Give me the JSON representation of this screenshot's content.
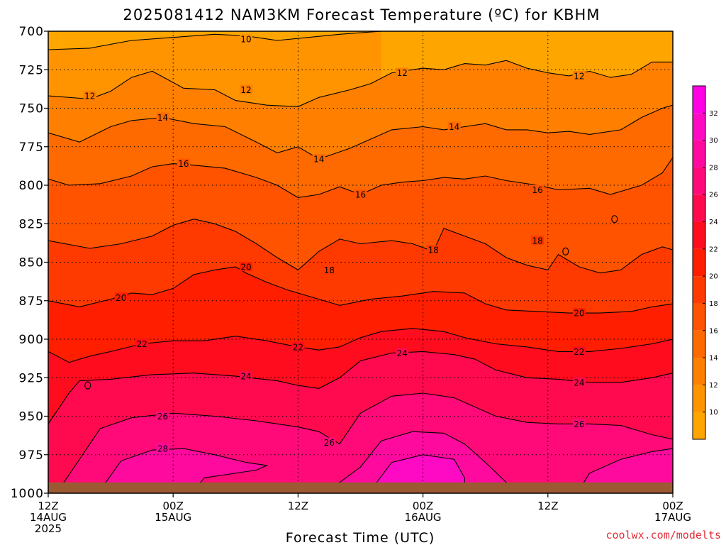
{
  "chart_data": {
    "type": "heatmap",
    "title": "2025081412 NAM3KM Forecast Temperature (ºC) for KBHM",
    "xlabel": "Forecast Time (UTC)",
    "ylabel": "",
    "source": "coolwx.com/modelts",
    "x_ticks": [
      {
        "h": 0,
        "lines": [
          "12Z",
          "14AUG",
          "2025"
        ]
      },
      {
        "h": 12,
        "lines": [
          "00Z",
          "15AUG"
        ]
      },
      {
        "h": 24,
        "lines": [
          "12Z"
        ]
      },
      {
        "h": 36,
        "lines": [
          "00Z",
          "16AUG"
        ]
      },
      {
        "h": 48,
        "lines": [
          "12Z"
        ]
      },
      {
        "h": 60,
        "lines": [
          "00Z",
          "17AUG"
        ]
      }
    ],
    "xlim": [
      0,
      60
    ],
    "y_ticks": [
      700,
      725,
      750,
      775,
      800,
      825,
      850,
      875,
      900,
      925,
      950,
      975,
      1000
    ],
    "ylim": [
      700,
      1000
    ],
    "ground_level_hpa": 993,
    "colorbar": {
      "ticks": [
        10,
        12,
        14,
        16,
        18,
        20,
        22,
        24,
        26,
        28,
        30,
        32
      ],
      "min": 8,
      "max": 34,
      "colors": [
        "#ffa500",
        "#ff9300",
        "#ff8000",
        "#ff6a00",
        "#ff5300",
        "#ff3a00",
        "#ff1e00",
        "#ff0c1e",
        "#ff0a4e",
        "#ff0a78",
        "#ff0a9e",
        "#ff0ac4",
        "#ff00e6",
        "#f900ff"
      ]
    },
    "contours": [
      {
        "value": 10,
        "pts": [
          [
            0,
            712
          ],
          [
            4,
            711
          ],
          [
            8,
            706
          ],
          [
            12,
            704
          ],
          [
            16,
            702
          ],
          [
            19,
            703
          ],
          [
            22,
            706
          ],
          [
            25,
            704
          ],
          [
            28,
            702
          ],
          [
            32,
            700
          ]
        ]
      },
      {
        "value": 12,
        "pts": [
          [
            0,
            742
          ],
          [
            4,
            744
          ],
          [
            6,
            739
          ],
          [
            8,
            730
          ],
          [
            10,
            726
          ],
          [
            13,
            737
          ],
          [
            16,
            738
          ],
          [
            18,
            745
          ],
          [
            21,
            748
          ],
          [
            24,
            749
          ],
          [
            26,
            743
          ],
          [
            29,
            738
          ],
          [
            31,
            734
          ],
          [
            33,
            727
          ],
          [
            36,
            724
          ],
          [
            38,
            725
          ],
          [
            40,
            721
          ],
          [
            42,
            722
          ],
          [
            44,
            719
          ],
          [
            46,
            724
          ],
          [
            48,
            727
          ],
          [
            50,
            729
          ],
          [
            52,
            726
          ],
          [
            54,
            730
          ],
          [
            56,
            728
          ],
          [
            58,
            720
          ],
          [
            60,
            720
          ]
        ]
      },
      {
        "value": 14,
        "pts": [
          [
            0,
            766
          ],
          [
            3,
            772
          ],
          [
            6,
            762
          ],
          [
            8,
            758
          ],
          [
            11,
            756
          ],
          [
            14,
            760
          ],
          [
            17,
            762
          ],
          [
            20,
            772
          ],
          [
            22,
            779
          ],
          [
            24,
            775
          ],
          [
            26,
            783
          ],
          [
            29,
            776
          ],
          [
            31,
            770
          ],
          [
            33,
            764
          ],
          [
            36,
            762
          ],
          [
            38,
            764
          ],
          [
            40,
            762
          ],
          [
            42,
            760
          ],
          [
            44,
            764
          ],
          [
            46,
            764
          ],
          [
            48,
            766
          ],
          [
            50,
            765
          ],
          [
            52,
            767
          ],
          [
            55,
            764
          ],
          [
            57,
            756
          ],
          [
            59,
            750
          ],
          [
            60,
            748
          ]
        ]
      },
      {
        "value": 16,
        "pts": [
          [
            0,
            796
          ],
          [
            2,
            800
          ],
          [
            5,
            799
          ],
          [
            8,
            794
          ],
          [
            10,
            788
          ],
          [
            12,
            786
          ],
          [
            14,
            787
          ],
          [
            17,
            789
          ],
          [
            20,
            795
          ],
          [
            22,
            800
          ],
          [
            24,
            808
          ],
          [
            26,
            806
          ],
          [
            28,
            801
          ],
          [
            30,
            806
          ],
          [
            32,
            800
          ],
          [
            34,
            798
          ],
          [
            36,
            797
          ],
          [
            38,
            795
          ],
          [
            40,
            796
          ],
          [
            42,
            794
          ],
          [
            44,
            797
          ],
          [
            47,
            800
          ],
          [
            49,
            803
          ],
          [
            52,
            802
          ],
          [
            54,
            806
          ],
          [
            57,
            800
          ],
          [
            59,
            792
          ],
          [
            60,
            782
          ]
        ]
      },
      {
        "value": 18,
        "pts": [
          [
            0,
            836
          ],
          [
            4,
            841
          ],
          [
            7,
            838
          ],
          [
            10,
            833
          ],
          [
            12,
            826
          ],
          [
            14,
            822
          ],
          [
            16,
            825
          ],
          [
            18,
            830
          ],
          [
            20,
            838
          ],
          [
            22,
            847
          ],
          [
            24,
            855
          ],
          [
            26,
            843
          ],
          [
            28,
            835
          ],
          [
            30,
            838
          ],
          [
            33,
            836
          ],
          [
            35,
            838
          ],
          [
            37,
            843
          ],
          [
            38,
            828
          ],
          [
            40,
            833
          ],
          [
            42,
            838
          ],
          [
            44,
            847
          ],
          [
            46,
            852
          ],
          [
            48,
            855
          ],
          [
            49,
            845
          ],
          [
            51,
            853
          ],
          [
            53,
            857
          ],
          [
            55,
            855
          ],
          [
            57,
            845
          ],
          [
            59,
            840
          ],
          [
            60,
            842
          ]
        ]
      },
      {
        "value": 20,
        "pts": [
          [
            0,
            875
          ],
          [
            3,
            879
          ],
          [
            6,
            874
          ],
          [
            8,
            870
          ],
          [
            10,
            871
          ],
          [
            12,
            867
          ],
          [
            14,
            858
          ],
          [
            16,
            855
          ],
          [
            18,
            853
          ],
          [
            19,
            857
          ],
          [
            21,
            863
          ],
          [
            23,
            868
          ],
          [
            26,
            874
          ],
          [
            28,
            878
          ],
          [
            31,
            874
          ],
          [
            34,
            872
          ],
          [
            37,
            869
          ],
          [
            40,
            870
          ],
          [
            42,
            877
          ],
          [
            44,
            881
          ],
          [
            47,
            882
          ],
          [
            50,
            883
          ],
          [
            53,
            883
          ],
          [
            56,
            882
          ],
          [
            58,
            879
          ],
          [
            60,
            877
          ]
        ]
      },
      {
        "value": 22,
        "pts": [
          [
            0,
            908
          ],
          [
            2,
            915
          ],
          [
            4,
            911
          ],
          [
            6,
            908
          ],
          [
            9,
            903
          ],
          [
            12,
            901
          ],
          [
            15,
            901
          ],
          [
            18,
            898
          ],
          [
            21,
            901
          ],
          [
            24,
            905
          ],
          [
            26,
            907
          ],
          [
            28,
            905
          ],
          [
            30,
            899
          ],
          [
            32,
            895
          ],
          [
            35,
            893
          ],
          [
            38,
            895
          ],
          [
            40,
            899
          ],
          [
            43,
            903
          ],
          [
            46,
            905
          ],
          [
            49,
            908
          ],
          [
            52,
            908
          ],
          [
            55,
            906
          ],
          [
            58,
            903
          ],
          [
            60,
            900
          ]
        ]
      },
      {
        "value": 24,
        "pts": [
          [
            0,
            955
          ],
          [
            2,
            935
          ],
          [
            3,
            927
          ],
          [
            6,
            926
          ],
          [
            10,
            923
          ],
          [
            14,
            922
          ],
          [
            18,
            924
          ],
          [
            22,
            927
          ],
          [
            24,
            930
          ],
          [
            26,
            932
          ],
          [
            28,
            925
          ],
          [
            30,
            914
          ],
          [
            33,
            909
          ],
          [
            36,
            908
          ],
          [
            39,
            910
          ],
          [
            41,
            913
          ],
          [
            43,
            920
          ],
          [
            46,
            925
          ],
          [
            49,
            926
          ],
          [
            52,
            928
          ],
          [
            55,
            928
          ],
          [
            58,
            925
          ],
          [
            60,
            922
          ]
        ]
      },
      {
        "value": 26,
        "pts": [
          [
            1,
            998
          ],
          [
            3,
            978
          ],
          [
            5,
            958
          ],
          [
            8,
            951
          ],
          [
            12,
            948
          ],
          [
            16,
            950
          ],
          [
            20,
            953
          ],
          [
            24,
            957
          ],
          [
            26,
            960
          ],
          [
            28,
            968
          ],
          [
            30,
            948
          ],
          [
            33,
            937
          ],
          [
            36,
            935
          ],
          [
            39,
            938
          ],
          [
            41,
            944
          ],
          [
            43,
            950
          ],
          [
            46,
            954
          ],
          [
            49,
            955
          ],
          [
            52,
            955
          ],
          [
            55,
            956
          ],
          [
            58,
            962
          ],
          [
            60,
            965
          ]
        ]
      },
      {
        "value": 28,
        "pts": [
          [
            5,
            998
          ],
          [
            7,
            979
          ],
          [
            10,
            972
          ],
          [
            13,
            971
          ],
          [
            16,
            975
          ],
          [
            19,
            980
          ],
          [
            21,
            982
          ],
          [
            20,
            985
          ],
          [
            17,
            988
          ],
          [
            15,
            990
          ],
          [
            14,
            998
          ]
        ]
      },
      {
        "value": 28,
        "pts": [
          [
            27,
            998
          ],
          [
            30,
            983
          ],
          [
            32,
            966
          ],
          [
            35,
            960
          ],
          [
            38,
            961
          ],
          [
            40,
            968
          ],
          [
            42,
            980
          ],
          [
            44,
            993
          ],
          [
            45,
            998
          ]
        ]
      },
      {
        "value": 28,
        "pts": [
          [
            51,
            998
          ],
          [
            52,
            987
          ],
          [
            55,
            978
          ],
          [
            58,
            973
          ],
          [
            60,
            971
          ]
        ]
      },
      {
        "value": 30,
        "pts": [
          [
            31,
            998
          ],
          [
            33,
            980
          ],
          [
            36,
            975
          ],
          [
            39,
            978
          ],
          [
            40,
            990
          ],
          [
            40,
            998
          ]
        ]
      }
    ],
    "contour_labels": [
      {
        "value": 10,
        "h": 19,
        "p": 705
      },
      {
        "value": 12,
        "h": 4,
        "p": 742
      },
      {
        "value": 12,
        "h": 19,
        "p": 738
      },
      {
        "value": 12,
        "h": 34,
        "p": 727
      },
      {
        "value": 12,
        "h": 51,
        "p": 729
      },
      {
        "value": 14,
        "h": 11,
        "p": 756
      },
      {
        "value": 14,
        "h": 26,
        "p": 783
      },
      {
        "value": 14,
        "h": 39,
        "p": 762
      },
      {
        "value": 16,
        "h": 13,
        "p": 786
      },
      {
        "value": 16,
        "h": 30,
        "p": 806
      },
      {
        "value": 16,
        "h": 47,
        "p": 803
      },
      {
        "value": 18,
        "h": 27,
        "p": 855
      },
      {
        "value": 18,
        "h": 37,
        "p": 842
      },
      {
        "value": 18,
        "h": 47,
        "p": 836
      },
      {
        "value": 20,
        "h": 7,
        "p": 873
      },
      {
        "value": 20,
        "h": 19,
        "p": 853
      },
      {
        "value": 20,
        "h": 51,
        "p": 883
      },
      {
        "value": 22,
        "h": 9,
        "p": 903
      },
      {
        "value": 22,
        "h": 24,
        "p": 905
      },
      {
        "value": 22,
        "h": 51,
        "p": 908
      },
      {
        "value": 24,
        "h": 19,
        "p": 924
      },
      {
        "value": 24,
        "h": 34,
        "p": 909
      },
      {
        "value": 24,
        "h": 51,
        "p": 928
      },
      {
        "value": 26,
        "h": 11,
        "p": 950
      },
      {
        "value": 26,
        "h": 27,
        "p": 967
      },
      {
        "value": 26,
        "h": 51,
        "p": 955
      },
      {
        "value": 28,
        "h": 11,
        "p": 971
      }
    ],
    "closed_contours": [
      {
        "h": 3.8,
        "p": 930
      },
      {
        "h": 54.4,
        "p": 822
      },
      {
        "h": 49.7,
        "p": 843
      }
    ],
    "grid": true
  }
}
